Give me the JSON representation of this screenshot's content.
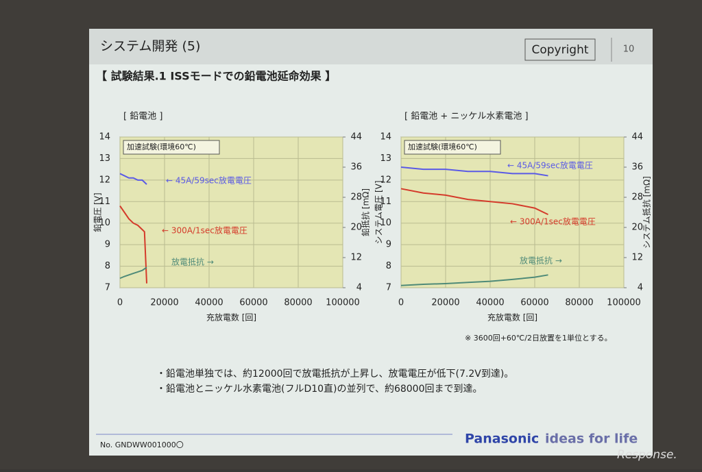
{
  "header": {
    "title": "システム開発 (5)",
    "copyright": "Copyright",
    "page": "10",
    "subtitle": "【 試験結果.1 ISSモードでの鉛電池延命効果 】"
  },
  "note": "※ 3600回+60℃/2日放置を1単位とする。",
  "bullets": [
    "・鉛電池単独では、約12000回で放電抵抗が上昇し、放電電圧が低下(7.2V到達)。",
    "・鉛電池とニッケル水素電池(フルD10直)の並列で、約68000回まで到達。"
  ],
  "footer": {
    "doc_no": "No. GNDWW001000〇",
    "brand": "Panasonic",
    "slogan": "ideas for life",
    "watermark": "Response."
  },
  "chart_data": [
    {
      "type": "line",
      "title": "[ 鉛電池 ]",
      "x_label": "充放電数 [回]",
      "y_label": "鉛電圧 [V]",
      "y2_label": "鉛抵抗 [mΩ]",
      "x": [
        0,
        2000,
        4000,
        6000,
        8000,
        10000,
        11000,
        12000
      ],
      "series": [
        {
          "name": "← 45A/59sec放電電圧",
          "color": "#5a5ae6",
          "values": [
            12.3,
            12.2,
            12.1,
            12.1,
            12.0,
            12.0,
            11.9,
            11.8
          ]
        },
        {
          "name": "← 300A/1sec放電電圧",
          "color": "#d43a2a",
          "values": [
            10.8,
            10.5,
            10.2,
            10.0,
            9.9,
            9.7,
            9.6,
            7.2
          ]
        },
        {
          "name": "放電抵抗 →",
          "color": "#4e8a78",
          "axis": "y2",
          "values": [
            6.5,
            7.0,
            7.4,
            7.8,
            8.2,
            8.6,
            9.0,
            9.4
          ]
        }
      ],
      "annotation": "加速試験(環境60℃)",
      "xlim": [
        0,
        100000
      ],
      "xticks": [
        0,
        20000,
        40000,
        60000,
        80000,
        100000
      ],
      "ylim": [
        7,
        14
      ],
      "yticks": [
        7,
        8,
        9,
        10,
        11,
        12,
        13,
        14
      ],
      "y2lim": [
        4,
        44
      ],
      "y2ticks": [
        4,
        12,
        20,
        28,
        36,
        44
      ],
      "grid": true
    },
    {
      "type": "line",
      "title": "[ 鉛電池 + ニッケル水素電池 ]",
      "x_label": "充放電数 [回]",
      "y_label": "システム電圧 [V]",
      "y2_label": "システム抵抗 [mΩ]",
      "x": [
        0,
        10000,
        20000,
        30000,
        40000,
        50000,
        60000,
        66000
      ],
      "series": [
        {
          "name": "← 45A/59sec放電電圧",
          "color": "#5a5ae6",
          "values": [
            12.6,
            12.5,
            12.5,
            12.4,
            12.4,
            12.3,
            12.3,
            12.2
          ]
        },
        {
          "name": "← 300A/1sec放電電圧",
          "color": "#d43a2a",
          "values": [
            11.6,
            11.4,
            11.3,
            11.1,
            11.0,
            10.9,
            10.7,
            10.4
          ]
        },
        {
          "name": "放電抵抗 →",
          "color": "#4e8a78",
          "axis": "y2",
          "values": [
            4.6,
            4.9,
            5.1,
            5.4,
            5.7,
            6.2,
            6.8,
            7.4
          ]
        }
      ],
      "annotation": "加速試験(環境60℃)",
      "xlim": [
        0,
        100000
      ],
      "xticks": [
        0,
        20000,
        40000,
        60000,
        80000,
        100000
      ],
      "ylim": [
        7,
        14
      ],
      "yticks": [
        7,
        8,
        9,
        10,
        11,
        12,
        13,
        14
      ],
      "y2lim": [
        4,
        44
      ],
      "y2ticks": [
        4,
        12,
        20,
        28,
        36,
        44
      ],
      "grid": true
    }
  ]
}
